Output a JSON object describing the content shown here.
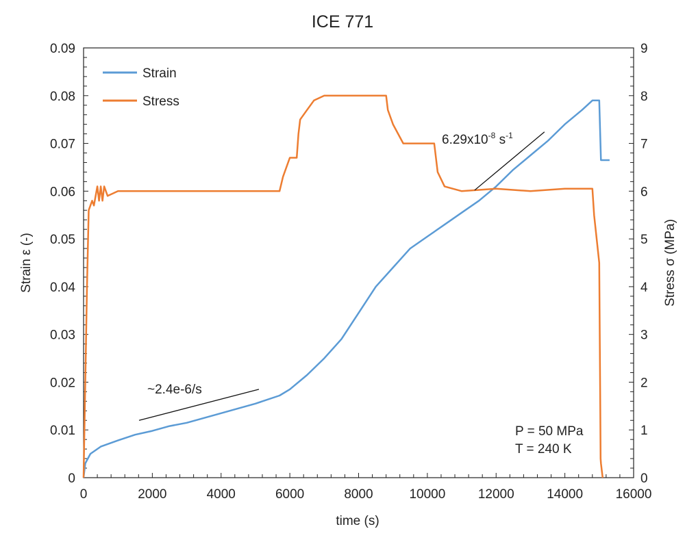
{
  "chart_data": {
    "type": "line",
    "title": "ICE 771",
    "xlabel": "time (s)",
    "ylabel": "Strain ε (-)",
    "y2label": "Stress σ (MPa)",
    "xlim": [
      0,
      16000
    ],
    "ylim": [
      0,
      0.09
    ],
    "y2lim": [
      0,
      9
    ],
    "xticks": [
      "0",
      "2000",
      "4000",
      "6000",
      "8000",
      "10000",
      "12000",
      "14000",
      "16000"
    ],
    "yticks": [
      "0",
      "0.01",
      "0.02",
      "0.03",
      "0.04",
      "0.05",
      "0.06",
      "0.07",
      "0.08",
      "0.09"
    ],
    "y2ticks": [
      "0",
      "1",
      "2",
      "3",
      "4",
      "5",
      "6",
      "7",
      "8",
      "9"
    ],
    "grid": false,
    "legend": "top-left",
    "series": [
      {
        "name": "Strain",
        "axis": "left",
        "color": "#5b9bd5",
        "x": [
          0,
          50,
          200,
          500,
          1000,
          1500,
          2000,
          2500,
          3000,
          3500,
          4000,
          4500,
          5000,
          5700,
          6000,
          6500,
          7000,
          7500,
          8000,
          8500,
          9000,
          9500,
          10000,
          10500,
          11000,
          11500,
          12000,
          12500,
          13000,
          13500,
          14000,
          14500,
          14800,
          15000,
          15050,
          15300
        ],
        "y": [
          0,
          0.003,
          0.005,
          0.0065,
          0.0078,
          0.009,
          0.0098,
          0.0108,
          0.0115,
          0.0125,
          0.0135,
          0.0145,
          0.0155,
          0.0172,
          0.0185,
          0.0215,
          0.025,
          0.029,
          0.0345,
          0.04,
          0.044,
          0.048,
          0.0505,
          0.053,
          0.0555,
          0.058,
          0.061,
          0.0645,
          0.0675,
          0.0705,
          0.074,
          0.077,
          0.079,
          0.079,
          0.0665,
          0.0665
        ]
      },
      {
        "name": "Stress",
        "axis": "right",
        "color": "#ed7d31",
        "x": [
          0,
          100,
          150,
          250,
          300,
          400,
          450,
          500,
          550,
          600,
          700,
          1000,
          2000,
          3000,
          4000,
          5000,
          5700,
          5800,
          6000,
          6200,
          6250,
          6300,
          6500,
          6700,
          7000,
          8000,
          8800,
          8850,
          9000,
          9300,
          10200,
          10300,
          10500,
          11000,
          12000,
          13000,
          14000,
          14800,
          14850,
          15000,
          15030,
          15040,
          15050,
          15100
        ],
        "y": [
          0,
          4,
          5.6,
          5.8,
          5.7,
          6.1,
          5.8,
          6.1,
          5.8,
          6.1,
          5.9,
          6.0,
          6.0,
          6.0,
          6.0,
          6.0,
          6.0,
          6.3,
          6.7,
          6.7,
          7.2,
          7.5,
          7.7,
          7.9,
          8.0,
          8.0,
          8.0,
          7.7,
          7.4,
          7.0,
          7.0,
          6.4,
          6.1,
          6.0,
          6.05,
          6.0,
          6.05,
          6.05,
          5.5,
          4.5,
          1.5,
          0.4,
          0.3,
          0
        ]
      }
    ],
    "annotations": [
      {
        "text": "~2.4e-6/s",
        "line": {
          "x": [
            1614,
            5100
          ],
          "y": [
            0.012,
            0.0185
          ]
        }
      },
      {
        "text_main": "6.29x10",
        "text_exp": "-8",
        "text_unit": " s",
        "text_unit_exp": "-1",
        "line": {
          "x": [
            11375,
            13406
          ],
          "y": [
            0.0602,
            0.0724
          ]
        }
      }
    ],
    "conditions": [
      "P = 50 MPa",
      "T = 240 K"
    ]
  }
}
